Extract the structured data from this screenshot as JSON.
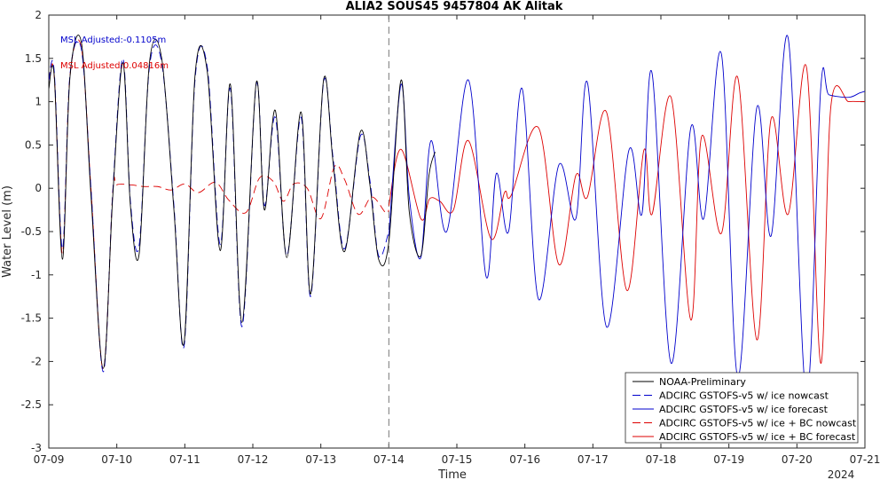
{
  "chart_data": {
    "type": "line",
    "title": "ALIA2 SOUS45 9457804 AK Alitak",
    "xlabel": "Time",
    "ylabel": "Water Level (m)",
    "year_label": "2024",
    "xlim": [
      9,
      21
    ],
    "ylim": [
      -3,
      2
    ],
    "x_ticks": [
      9,
      10,
      11,
      12,
      13,
      14,
      15,
      16,
      17,
      18,
      19,
      20,
      21
    ],
    "x_tick_labels": [
      "07-09",
      "07-10",
      "07-11",
      "07-12",
      "07-13",
      "07-14",
      "07-15",
      "07-16",
      "07-17",
      "07-18",
      "07-19",
      "07-20",
      "07-21"
    ],
    "y_ticks": [
      -3,
      -2.5,
      -2,
      -1.5,
      -1,
      -0.5,
      0,
      0.5,
      1,
      1.5,
      2
    ],
    "y_tick_labels": [
      "-3",
      "-2.5",
      "-2",
      "-1.5",
      "-1",
      "-0.5",
      "0",
      "0.5",
      "1",
      "1.5",
      "2"
    ],
    "nowcast_divider_x": 14,
    "annotations": [
      {
        "text": "MSL Adjusted:-0.1105m",
        "color": "#0000cc"
      },
      {
        "text": "MSL Adjusted:0.04816m",
        "color": "#dd0000"
      }
    ],
    "legend_position": "bottom-right",
    "series": [
      {
        "name": "NOAA-Preliminary",
        "color": "#000000",
        "dash": "solid",
        "x": [
          9.0,
          9.08,
          9.2,
          9.31,
          9.48,
          9.62,
          9.8,
          9.94,
          10.09,
          10.2,
          10.33,
          10.48,
          10.66,
          10.84,
          10.99,
          11.15,
          11.33,
          11.52,
          11.67,
          11.84,
          12.05,
          12.17,
          12.33,
          12.5,
          12.71,
          12.85,
          13.04,
          13.18,
          13.35,
          13.58,
          13.72,
          13.85,
          14.0,
          14.18,
          14.3,
          14.47,
          14.59,
          14.68
        ],
        "y": [
          1.15,
          1.3,
          -0.82,
          1.27,
          1.68,
          -0.08,
          -2.08,
          -0.1,
          1.45,
          -0.2,
          -0.75,
          1.45,
          1.5,
          -0.25,
          -1.78,
          1.3,
          1.35,
          -0.72,
          1.2,
          -1.55,
          1.22,
          -0.25,
          0.9,
          -0.8,
          0.88,
          -1.22,
          1.25,
          0.3,
          -0.73,
          0.65,
          0.05,
          -0.82,
          -0.62,
          1.25,
          -0.27,
          -0.78,
          0.15,
          0.42
        ]
      },
      {
        "name": "ADCIRC GSTOFS-v5 w/ ice nowcast",
        "color": "#0000cc",
        "dash": "dashed",
        "x": [
          9.0,
          9.08,
          9.2,
          9.31,
          9.48,
          9.62,
          9.8,
          9.94,
          10.09,
          10.2,
          10.33,
          10.48,
          10.66,
          10.84,
          10.99,
          11.15,
          11.33,
          11.52,
          11.67,
          11.84,
          12.05,
          12.17,
          12.33,
          12.5,
          12.71,
          12.85,
          13.04,
          13.18,
          13.35,
          13.58,
          13.72,
          13.85,
          14.0
        ],
        "y": [
          1.25,
          1.35,
          -0.7,
          1.3,
          1.6,
          0.0,
          -2.12,
          -0.05,
          1.5,
          -0.15,
          -0.65,
          1.4,
          1.45,
          -0.2,
          -1.82,
          1.25,
          1.4,
          -0.65,
          1.15,
          -1.6,
          1.2,
          -0.2,
          0.82,
          -0.78,
          0.82,
          -1.25,
          1.22,
          0.35,
          -0.7,
          0.6,
          0.1,
          -0.78,
          -0.5
        ]
      },
      {
        "name": "ADCIRC GSTOFS-v5 w/ ice forecast",
        "color": "#0000cc",
        "dash": "solid",
        "x": [
          14.0,
          14.18,
          14.3,
          14.47,
          14.62,
          14.85,
          15.17,
          15.43,
          15.58,
          15.76,
          15.96,
          16.2,
          16.5,
          16.75,
          16.92,
          17.2,
          17.53,
          17.72,
          17.87,
          18.15,
          18.44,
          18.63,
          18.89,
          19.13,
          19.41,
          19.62,
          19.87,
          20.14,
          20.35,
          20.47,
          20.76,
          20.92,
          21.0
        ],
        "y": [
          -0.55,
          1.2,
          -0.1,
          -0.8,
          0.55,
          -0.5,
          1.25,
          -1.02,
          0.17,
          -0.5,
          1.15,
          -1.28,
          0.27,
          -0.35,
          1.22,
          -1.6,
          0.44,
          -0.3,
          1.33,
          -2.02,
          0.7,
          -0.35,
          1.55,
          -2.18,
          0.93,
          -0.55,
          1.74,
          -2.4,
          1.15,
          1.08,
          1.05,
          1.1,
          1.12
        ]
      },
      {
        "name": "ADCIRC GSTOFS-v5 w/ ice + BC nowcast",
        "color": "#dd0000",
        "dash": "dashed",
        "x": [
          9.0,
          9.08,
          9.2,
          9.31,
          9.48,
          9.62,
          9.8,
          9.94,
          10.0,
          10.2,
          10.4,
          10.6,
          10.8,
          11.0,
          11.2,
          11.45,
          11.65,
          11.9,
          12.1,
          12.3,
          12.45,
          12.6,
          12.8,
          13.0,
          13.2,
          13.35,
          13.55,
          13.75,
          13.95,
          14.0
        ],
        "y": [
          1.25,
          1.3,
          -0.75,
          1.28,
          1.62,
          0.0,
          -2.1,
          -0.05,
          0.04,
          0.04,
          0.02,
          0.02,
          -0.02,
          0.05,
          -0.05,
          0.07,
          -0.14,
          -0.28,
          0.12,
          0.08,
          -0.15,
          0.05,
          0.0,
          -0.35,
          0.25,
          0.1,
          -0.3,
          -0.1,
          -0.28,
          -0.25
        ]
      },
      {
        "name": "ADCIRC GSTOFS-v5 w/ ice + BC forecast",
        "color": "#dd0000",
        "dash": "solid",
        "x": [
          14.0,
          14.18,
          14.47,
          14.6,
          14.75,
          14.95,
          15.17,
          15.5,
          15.7,
          15.8,
          16.2,
          16.5,
          16.75,
          16.92,
          17.2,
          17.5,
          17.75,
          17.87,
          18.15,
          18.44,
          18.6,
          18.89,
          19.13,
          19.41,
          19.62,
          19.87,
          20.14,
          20.35,
          20.5,
          20.76,
          20.92,
          21.0
        ],
        "y": [
          -0.2,
          0.45,
          -0.35,
          -0.12,
          -0.15,
          -0.25,
          0.55,
          -0.58,
          -0.05,
          -0.08,
          0.7,
          -0.88,
          0.15,
          -0.1,
          0.88,
          -1.18,
          0.44,
          -0.3,
          1.05,
          -1.52,
          0.6,
          -0.52,
          1.28,
          -1.75,
          0.8,
          -0.3,
          1.4,
          -2.02,
          0.95,
          1.0,
          1.0,
          1.0
        ]
      }
    ]
  }
}
